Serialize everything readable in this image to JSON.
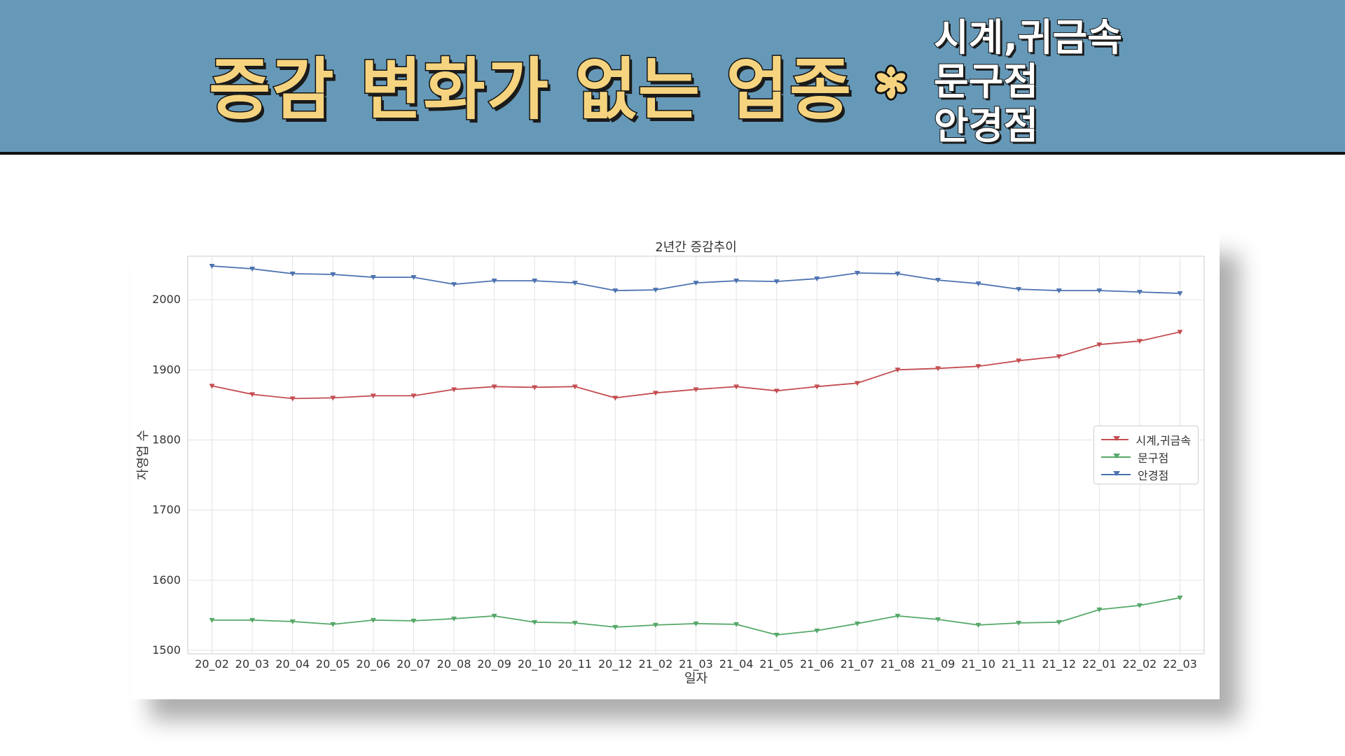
{
  "banner": {
    "headline": "증감 변화가 없는 업종",
    "flower_icon": "flower-asterisk-icon",
    "categories": [
      "시계,귀금속",
      "문구점",
      "안경점"
    ]
  },
  "chart_data": {
    "type": "line",
    "title": "2년간 증감추이",
    "xlabel": "일자",
    "ylabel": "자영업 수",
    "categories": [
      "20_02",
      "20_03",
      "20_04",
      "20_05",
      "20_06",
      "20_07",
      "20_08",
      "20_09",
      "20_10",
      "20_11",
      "20_12",
      "21_02",
      "21_03",
      "21_04",
      "21_05",
      "21_06",
      "21_07",
      "21_08",
      "21_09",
      "21_10",
      "21_11",
      "21_12",
      "22_01",
      "22_02",
      "22_03"
    ],
    "ylim": [
      1495,
      2062
    ],
    "yticks": [
      1500,
      1600,
      1700,
      1800,
      1900,
      2000
    ],
    "grid": true,
    "legend_position": "center-right",
    "marker": "triangle-down",
    "series": [
      {
        "name": "시계,귀금속",
        "color": "#c44e52",
        "values": [
          1877,
          1865,
          1859,
          1860,
          1863,
          1863,
          1872,
          1876,
          1875,
          1876,
          1860,
          1867,
          1872,
          1876,
          1870,
          1876,
          1881,
          1900,
          1902,
          1905,
          1913,
          1919,
          1936,
          1941,
          1954
        ]
      },
      {
        "name": "문구점",
        "color": "#55a868",
        "values": [
          1543,
          1543,
          1541,
          1537,
          1543,
          1542,
          1545,
          1549,
          1540,
          1539,
          1533,
          1536,
          1538,
          1537,
          1522,
          1528,
          1538,
          1549,
          1544,
          1536,
          1539,
          1540,
          1558,
          1564,
          1575
        ]
      },
      {
        "name": "안경점",
        "color": "#4c72b0",
        "values": [
          2048,
          2044,
          2037,
          2036,
          2032,
          2032,
          2022,
          2027,
          2027,
          2024,
          2013,
          2014,
          2024,
          2027,
          2026,
          2030,
          2038,
          2037,
          2028,
          2023,
          2015,
          2013,
          2013,
          2011,
          2009
        ]
      }
    ]
  }
}
